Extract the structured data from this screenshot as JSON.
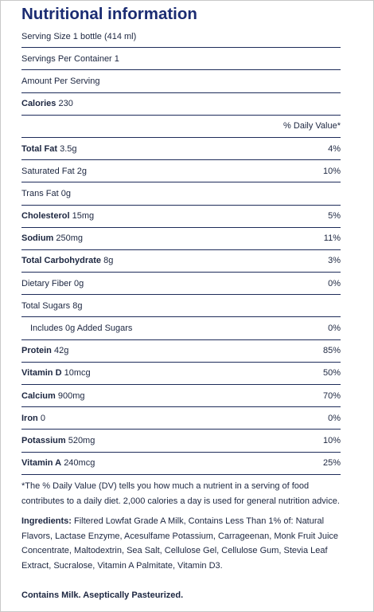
{
  "header": {
    "title": "Nutritional information"
  },
  "rows": [
    {
      "amount": "Serving Size 1 bottle (414 ml)"
    },
    {
      "amount": "Servings Per Container 1"
    },
    {
      "amount": "Amount Per Serving"
    },
    {
      "label": "Calories",
      "amount": "230"
    },
    {
      "dv": "% Daily Value*"
    },
    {
      "label": "Total Fat",
      "amount": "3.5g",
      "dv": "4%"
    },
    {
      "amount": "Saturated Fat 2g",
      "dv": "10%"
    },
    {
      "amount": "Trans Fat 0g"
    },
    {
      "label": "Cholesterol",
      "amount": "15mg",
      "dv": "5%"
    },
    {
      "label": "Sodium",
      "amount": "250mg",
      "dv": "11%"
    },
    {
      "label": "Total Carbohydrate",
      "amount": "8g",
      "dv": "3%"
    },
    {
      "amount": "Dietary Fiber 0g",
      "dv": "0%"
    },
    {
      "amount": "Total Sugars 8g"
    },
    {
      "amount": "Includes 0g Added Sugars",
      "dv": "0%",
      "indent": true
    },
    {
      "label": "Protein",
      "amount": "42g",
      "dv": "85%"
    },
    {
      "label": "Vitamin D",
      "amount": "10mcg",
      "dv": "50%"
    },
    {
      "label": "Calcium",
      "amount": "900mg",
      "dv": "70%"
    },
    {
      "label": "Iron",
      "amount": "0",
      "dv": "0%"
    },
    {
      "label": "Potassium",
      "amount": "520mg",
      "dv": "10%"
    },
    {
      "label": "Vitamin A",
      "amount": "240mcg",
      "dv": "25%"
    }
  ],
  "footnote": "*The % Daily Value (DV) tells you how much a nutrient in a serving of food contributes to a daily diet. 2,000 calories a day is used for general nutrition advice.",
  "ingredients": {
    "label": "Ingredients:",
    "text": "Filtered Lowfat Grade A Milk, Contains Less Than 1% of: Natural Flavors, Lactase Enzyme, Acesulfame Potassium, Carrageenan, Monk Fruit Juice Concentrate, Maltodextrin, Sea Salt, Cellulose Gel, Cellulose Gum, Stevia Leaf Extract, Sucralose, Vitamin A Palmitate, Vitamin D3."
  },
  "contains": "Contains Milk. Aseptically Pasteurized."
}
